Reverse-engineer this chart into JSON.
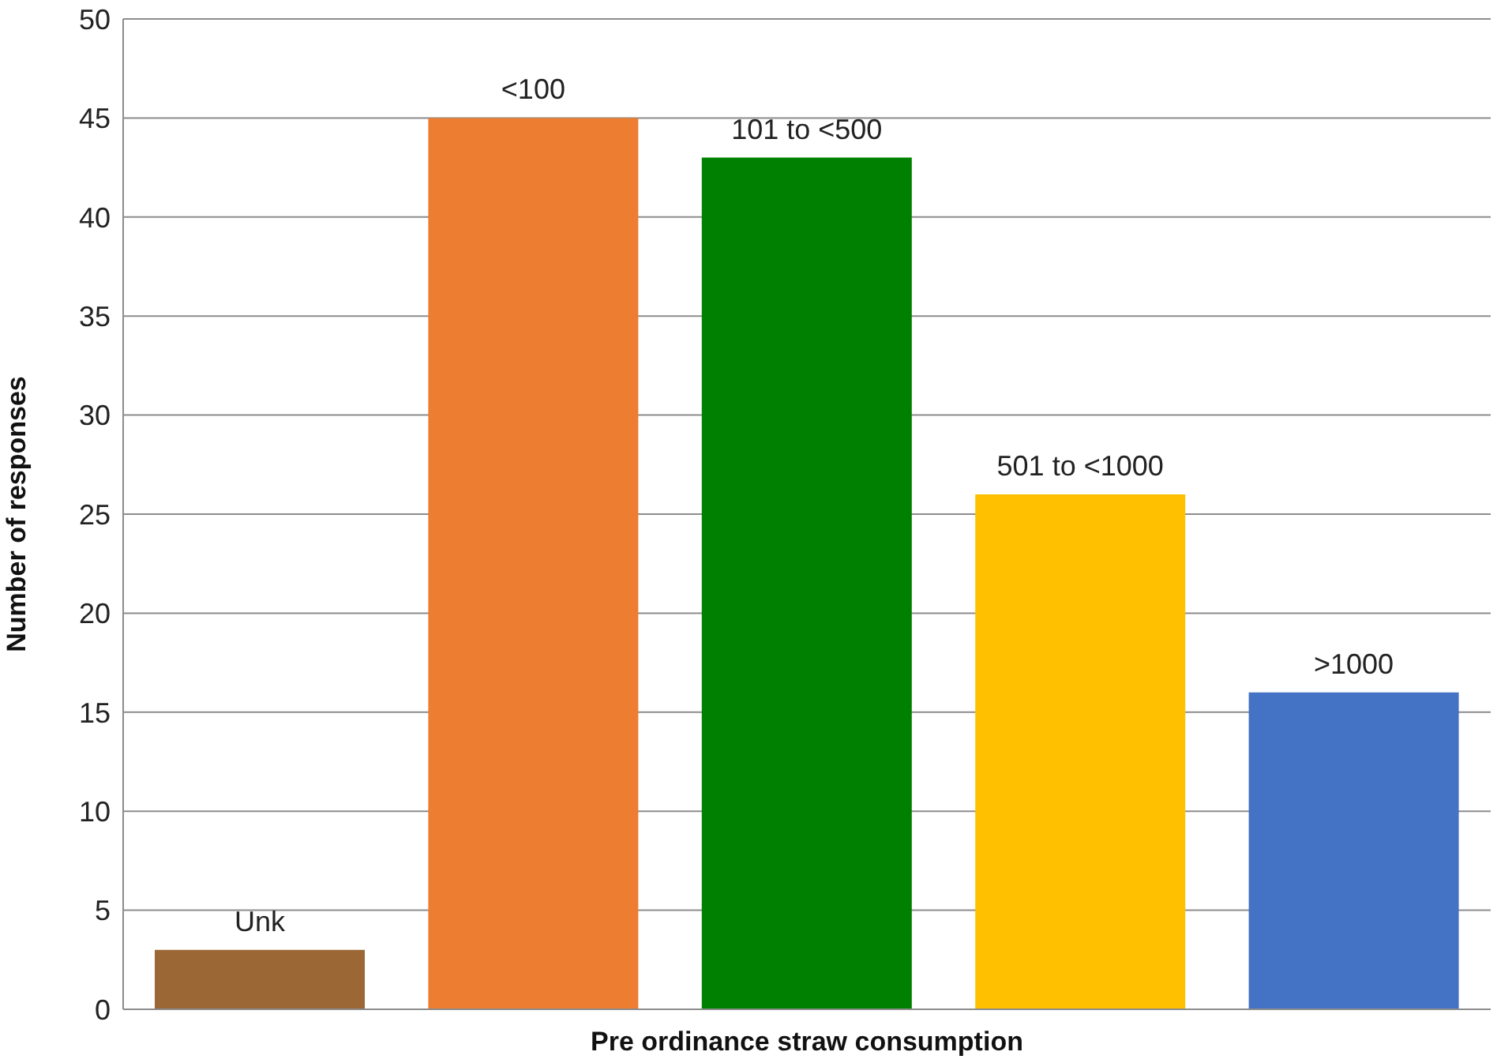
{
  "chart_data": {
    "type": "bar",
    "xlabel": "Pre ordinance straw consumption",
    "ylabel": "Number of responses",
    "categories": [
      "Unk",
      "<100",
      "101 to <500",
      "501 to <1000",
      ">1000"
    ],
    "values": [
      3,
      45,
      43,
      26,
      16
    ],
    "colors": [
      "#9a6735",
      "#ed7d31",
      "#008000",
      "#ffc000",
      "#4472c4"
    ],
    "ylim": [
      0,
      50
    ],
    "yticks": [
      0,
      5,
      10,
      15,
      20,
      25,
      30,
      35,
      40,
      45,
      50
    ],
    "grid": "y",
    "tick_labels": "y"
  }
}
